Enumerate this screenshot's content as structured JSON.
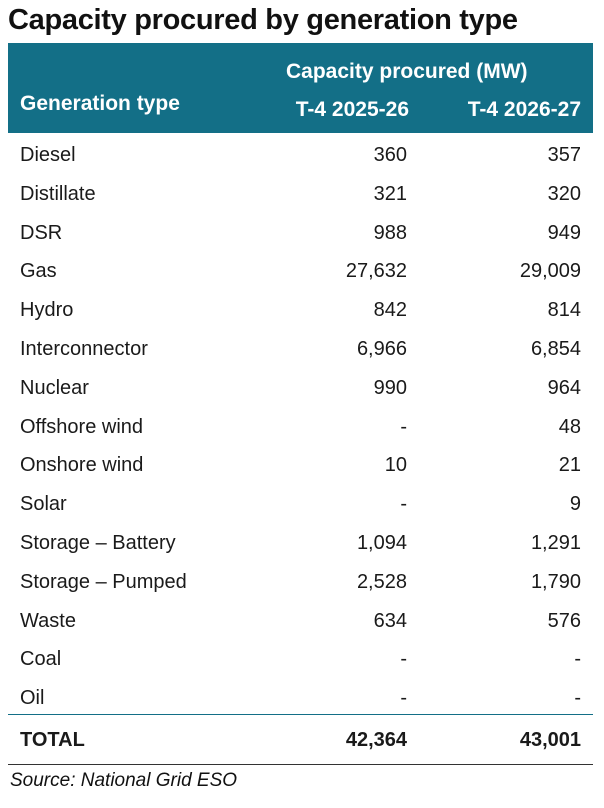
{
  "title": "Capacity procured by generation type",
  "header": {
    "group_label": "Capacity procured (MW)",
    "col_type": "Generation type",
    "col_2025": "T-4 2025-26",
    "col_2026": "T-4 2026-27"
  },
  "rows": [
    {
      "type": "Diesel",
      "y2025": "360",
      "y2026": "357"
    },
    {
      "type": "Distillate",
      "y2025": "321",
      "y2026": "320"
    },
    {
      "type": "DSR",
      "y2025": "988",
      "y2026": "949"
    },
    {
      "type": "Gas",
      "y2025": "27,632",
      "y2026": "29,009"
    },
    {
      "type": "Hydro",
      "y2025": "842",
      "y2026": "814"
    },
    {
      "type": "Interconnector",
      "y2025": "6,966",
      "y2026": "6,854"
    },
    {
      "type": "Nuclear",
      "y2025": "990",
      "y2026": "964"
    },
    {
      "type": "Offshore wind",
      "y2025": "-",
      "y2026": "48"
    },
    {
      "type": "Onshore wind",
      "y2025": "10",
      "y2026": "21"
    },
    {
      "type": "Solar",
      "y2025": "-",
      "y2026": "9"
    },
    {
      "type": "Storage – Battery",
      "y2025": "1,094",
      "y2026": "1,291"
    },
    {
      "type": "Storage – Pumped",
      "y2025": "2,528",
      "y2026": "1,790"
    },
    {
      "type": "Waste",
      "y2025": "634",
      "y2026": "576"
    },
    {
      "type": "Coal",
      "y2025": "-",
      "y2026": "-"
    },
    {
      "type": "Oil",
      "y2025": "-",
      "y2026": "-"
    }
  ],
  "total": {
    "label": "TOTAL",
    "y2025": "42,364",
    "y2026": "43,001"
  },
  "source": "Source: National Grid ESO",
  "colors": {
    "header_bg": "#136f87",
    "header_text": "#ffffff"
  }
}
